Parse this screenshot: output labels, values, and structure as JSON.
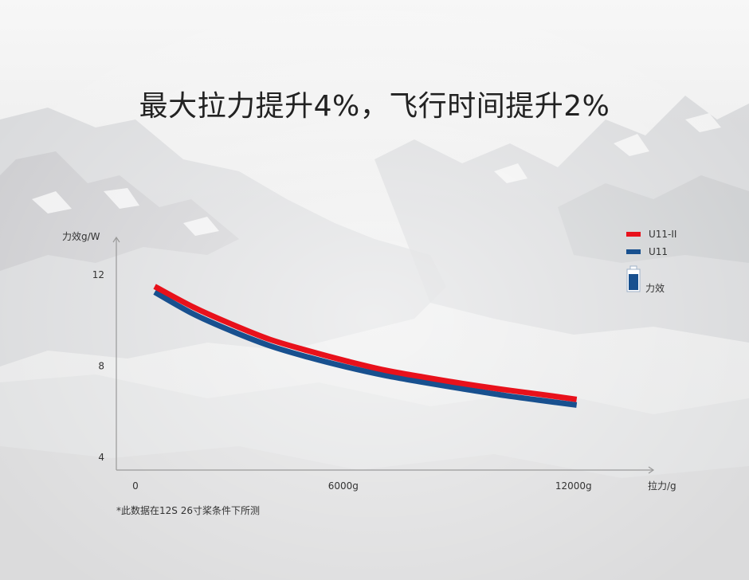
{
  "headline": "最大拉力提升4%，飞行时间提升2%",
  "footnote": "*此数据在12S 26寸桨条件下所测",
  "colors": {
    "u11ii": "#e8111b",
    "u11": "#18508f",
    "axis": "#9a9a9a",
    "text": "#333333"
  },
  "chart_data": {
    "type": "line",
    "ylabel": "力效g/W",
    "xlabel": "拉力/g",
    "xlim": [
      0,
      14000
    ],
    "ylim": [
      3.4,
      13.6
    ],
    "x_ticks": [
      {
        "value": 0,
        "label": "0"
      },
      {
        "value": 6000,
        "label": "6000g"
      },
      {
        "value": 12000,
        "label": "12000g"
      }
    ],
    "y_ticks": [
      {
        "value": 4,
        "label": "4"
      },
      {
        "value": 8,
        "label": "8"
      },
      {
        "value": 12,
        "label": "12"
      }
    ],
    "grid": false,
    "legend_position": "top-right",
    "legend_note": "力效",
    "series": [
      {
        "name": "U11-II",
        "color": "#e8111b",
        "x": [
          1000,
          2000,
          3000,
          4000,
          5000,
          6000,
          7000,
          8000,
          9000,
          10000,
          11000,
          12000
        ],
        "y": [
          11.45,
          10.55,
          9.8,
          9.13,
          8.63,
          8.18,
          7.78,
          7.48,
          7.2,
          6.95,
          6.73,
          6.5
        ]
      },
      {
        "name": "U11",
        "color": "#18508f",
        "x": [
          1000,
          2000,
          3000,
          4000,
          5000,
          6000,
          7000,
          8000,
          9000,
          10000,
          11000,
          12000
        ],
        "y": [
          11.2,
          10.25,
          9.5,
          8.85,
          8.35,
          7.92,
          7.55,
          7.25,
          6.97,
          6.7,
          6.47,
          6.25
        ]
      }
    ]
  }
}
